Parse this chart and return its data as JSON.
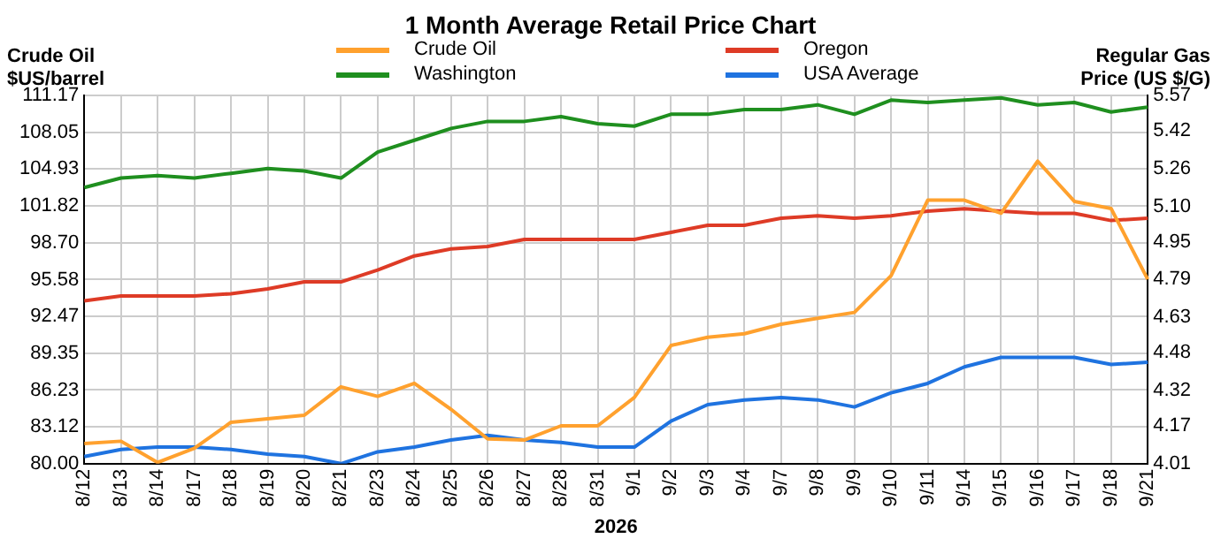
{
  "chart_data": {
    "type": "line",
    "title": "1 Month Average Retail Price Chart",
    "xlabel": "2026",
    "ylabel": "Crude Oil\n$US/barrel",
    "y2label": "Regular Gas\nPrice (US $/G)",
    "categories": [
      "8/12",
      "8/13",
      "8/14",
      "8/17",
      "8/18",
      "8/19",
      "8/20",
      "8/21",
      "8/23",
      "8/24",
      "8/25",
      "8/26",
      "8/27",
      "8/28",
      "8/31",
      "9/1",
      "9/2",
      "9/3",
      "9/4",
      "9/7",
      "9/8",
      "9/9",
      "9/10",
      "9/11",
      "9/14",
      "9/15",
      "9/16",
      "9/17",
      "9/18",
      "9/21"
    ],
    "series": [
      {
        "name": "Crude Oil",
        "color": "#ffa12e",
        "values": [
          81.7,
          81.9,
          80.1,
          81.3,
          83.5,
          83.8,
          84.1,
          86.5,
          85.7,
          86.8,
          84.6,
          82.1,
          82.0,
          83.2,
          83.2,
          85.6,
          90.0,
          90.7,
          91.0,
          91.8,
          92.3,
          92.8,
          95.9,
          102.3,
          102.3,
          101.2,
          105.6,
          102.2,
          101.6,
          95.6
        ]
      },
      {
        "name": "Washington",
        "color": "#1f8f1f",
        "axis": "y2",
        "values": [
          5.18,
          5.22,
          5.23,
          5.22,
          5.24,
          5.26,
          5.25,
          5.22,
          5.33,
          5.38,
          5.43,
          5.46,
          5.46,
          5.48,
          5.45,
          5.44,
          5.49,
          5.49,
          5.51,
          5.51,
          5.53,
          5.49,
          5.55,
          5.54,
          5.55,
          5.56,
          5.53,
          5.54,
          5.5,
          5.52
        ]
      },
      {
        "name": "Oregon",
        "color": "#de3b26",
        "axis": "y2",
        "values": [
          4.7,
          4.72,
          4.72,
          4.72,
          4.73,
          4.75,
          4.78,
          4.78,
          4.83,
          4.89,
          4.92,
          4.93,
          4.96,
          4.96,
          4.96,
          4.96,
          4.99,
          5.02,
          5.02,
          5.05,
          5.06,
          5.05,
          5.06,
          5.08,
          5.09,
          5.08,
          5.07,
          5.07,
          5.04,
          5.05
        ]
      },
      {
        "name": "USA Average",
        "color": "#1f73e0",
        "axis": "y2",
        "values": [
          4.04,
          4.07,
          4.08,
          4.08,
          4.07,
          4.05,
          4.04,
          4.01,
          4.06,
          4.08,
          4.11,
          4.13,
          4.11,
          4.1,
          4.08,
          4.08,
          4.19,
          4.26,
          4.28,
          4.29,
          4.28,
          4.25,
          4.31,
          4.35,
          4.42,
          4.46,
          4.46,
          4.46,
          4.43,
          4.44
        ]
      }
    ],
    "ylim": [
      80,
      111.17
    ],
    "yticks": [
      {
        "value": 80,
        "label": "80.00"
      },
      83.12,
      86.23,
      89.35,
      92.47,
      95.58,
      {
        "value": 98.7,
        "label": "98.70"
      },
      101.82,
      104.93,
      108.05,
      111.17
    ],
    "y2lim": [
      4.01,
      5.57
    ],
    "y2ticks": [
      4.01,
      4.17,
      4.32,
      4.48,
      4.63,
      4.79,
      4.95,
      {
        "value": 5.1,
        "label": "5.10"
      },
      5.26,
      5.42,
      5.57
    ],
    "grid": true,
    "legend": "top",
    "marker": "none",
    "line_style": "solid"
  }
}
